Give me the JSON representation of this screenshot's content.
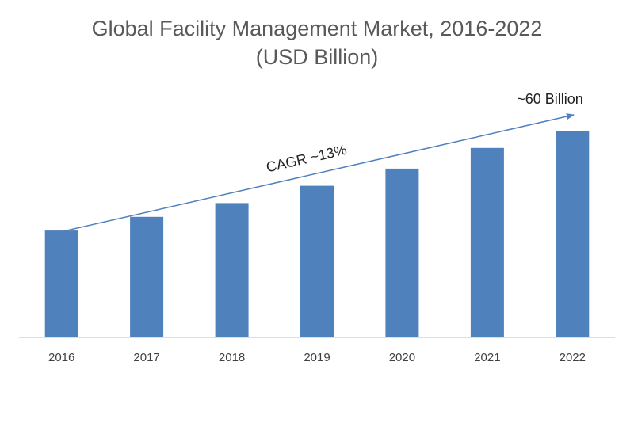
{
  "chart_data": {
    "type": "bar",
    "title": "Global Facility Management Market, 2016-2022",
    "subtitle": "(USD Billion)",
    "categories": [
      "2016",
      "2017",
      "2018",
      "2019",
      "2020",
      "2021",
      "2022"
    ],
    "values": [
      31,
      35,
      39,
      44,
      49,
      55,
      60
    ],
    "ylim": [
      0,
      65
    ],
    "grid": false,
    "legend": "none",
    "annotations": {
      "cagr_label": "CAGR ~13%",
      "end_label": "~60 Billion"
    },
    "colors": {
      "bar": "#4f81bd",
      "trend_arrow": "#4f81bd",
      "axis": "#bfbfbf"
    }
  }
}
